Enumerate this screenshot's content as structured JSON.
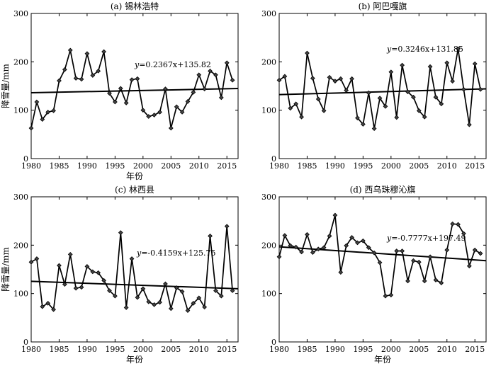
{
  "chart_data": [
    {
      "type": "line",
      "title": "(a) 锡林浩特",
      "xlabel": "年份",
      "ylabel": "降雪量/mm",
      "xlim": [
        1980,
        2017
      ],
      "ylim": [
        0,
        300
      ],
      "xticks": [
        1980,
        1985,
        1990,
        1995,
        2000,
        2005,
        2010,
        2015
      ],
      "yticks": [
        0,
        100,
        200,
        300
      ],
      "grid": false,
      "equation": {
        "lhs": "y",
        "rhs": "=0.2367x+135.82"
      },
      "trend": {
        "slope": 0.2367,
        "intercept": 135.82
      },
      "x": [
        1980,
        1981,
        1982,
        1983,
        1984,
        1985,
        1986,
        1987,
        1988,
        1989,
        1990,
        1991,
        1992,
        1993,
        1994,
        1995,
        1996,
        1997,
        1998,
        1999,
        2000,
        2001,
        2002,
        2003,
        2004,
        2005,
        2006,
        2007,
        2008,
        2009,
        2010,
        2011,
        2012,
        2013,
        2014,
        2015,
        2016
      ],
      "y": [
        63,
        117,
        81,
        96,
        99,
        161,
        184,
        224,
        166,
        164,
        217,
        172,
        181,
        221,
        135,
        117,
        145,
        115,
        163,
        165,
        100,
        87,
        90,
        96,
        144,
        63,
        107,
        96,
        118,
        137,
        173,
        144,
        181,
        173,
        126,
        198,
        162
      ]
    },
    {
      "type": "line",
      "title": "(b) 阿巴嘎旗",
      "xlabel": "",
      "ylabel": "",
      "xlim": [
        1980,
        2017
      ],
      "ylim": [
        0,
        300
      ],
      "xticks": [
        1980,
        1985,
        1990,
        1995,
        2000,
        2005,
        2010,
        2015
      ],
      "yticks": [
        0,
        100,
        200,
        300
      ],
      "grid": false,
      "equation": {
        "lhs": "y",
        "rhs": "=0.3246x+131.85"
      },
      "trend": {
        "slope": 0.3246,
        "intercept": 131.85
      },
      "x": [
        1980,
        1981,
        1982,
        1983,
        1984,
        1985,
        1986,
        1987,
        1988,
        1989,
        1990,
        1991,
        1992,
        1993,
        1994,
        1995,
        1996,
        1997,
        1998,
        1999,
        2000,
        2001,
        2002,
        2003,
        2004,
        2005,
        2006,
        2007,
        2008,
        2009,
        2010,
        2011,
        2012,
        2013,
        2014,
        2015,
        2016
      ],
      "y": [
        162,
        170,
        104,
        113,
        86,
        218,
        166,
        123,
        99,
        168,
        160,
        165,
        141,
        165,
        84,
        71,
        136,
        62,
        125,
        108,
        179,
        85,
        193,
        138,
        127,
        99,
        86,
        190,
        127,
        113,
        198,
        160,
        227,
        143,
        70,
        196,
        143
      ]
    },
    {
      "type": "line",
      "title": "(c) 林西县",
      "xlabel": "年份",
      "ylabel": "降雪量/mm",
      "xlim": [
        1980,
        2017
      ],
      "ylim": [
        0,
        300
      ],
      "xticks": [
        1980,
        1985,
        1990,
        1995,
        2000,
        2005,
        2010,
        2015
      ],
      "yticks": [
        0,
        100,
        200,
        300
      ],
      "grid": false,
      "equation": {
        "lhs": "y",
        "rhs": "=-0.4159x+125.75"
      },
      "trend": {
        "slope": -0.4159,
        "intercept": 125.75
      },
      "x": [
        1980,
        1981,
        1982,
        1983,
        1984,
        1985,
        1986,
        1987,
        1988,
        1989,
        1990,
        1991,
        1992,
        1993,
        1994,
        1995,
        1996,
        1997,
        1998,
        1999,
        2000,
        2001,
        2002,
        2003,
        2004,
        2005,
        2006,
        2007,
        2008,
        2009,
        2010,
        2011,
        2012,
        2013,
        2014,
        2015,
        2016
      ],
      "y": [
        165,
        172,
        73,
        80,
        67,
        158,
        119,
        181,
        111,
        113,
        156,
        145,
        143,
        127,
        106,
        95,
        226,
        71,
        172,
        92,
        110,
        83,
        77,
        82,
        120,
        69,
        112,
        104,
        65,
        80,
        91,
        72,
        219,
        106,
        95,
        239,
        106
      ]
    },
    {
      "type": "line",
      "title": "(d) 西乌珠穆沁旗",
      "xlabel": "年份",
      "ylabel": "",
      "xlim": [
        1980,
        2017
      ],
      "ylim": [
        0,
        300
      ],
      "xticks": [
        1980,
        1985,
        1990,
        1995,
        2000,
        2005,
        2010,
        2015
      ],
      "yticks": [
        0,
        100,
        200,
        300
      ],
      "grid": false,
      "equation": {
        "lhs": "y",
        "rhs": "=-0.7777x+197.49"
      },
      "trend": {
        "slope": -0.7777,
        "intercept": 197.49
      },
      "x": [
        1980,
        1981,
        1982,
        1983,
        1984,
        1985,
        1986,
        1987,
        1988,
        1989,
        1990,
        1991,
        1992,
        1993,
        1994,
        1995,
        1996,
        1997,
        1998,
        1999,
        2000,
        2001,
        2002,
        2003,
        2004,
        2005,
        2006,
        2007,
        2008,
        2009,
        2010,
        2011,
        2012,
        2013,
        2014,
        2015,
        2016
      ],
      "y": [
        176,
        220,
        199,
        196,
        186,
        222,
        185,
        192,
        195,
        219,
        262,
        144,
        199,
        216,
        205,
        209,
        195,
        184,
        164,
        95,
        97,
        188,
        188,
        126,
        168,
        165,
        126,
        176,
        128,
        122,
        190,
        244,
        243,
        224,
        157,
        190,
        183
      ]
    }
  ]
}
